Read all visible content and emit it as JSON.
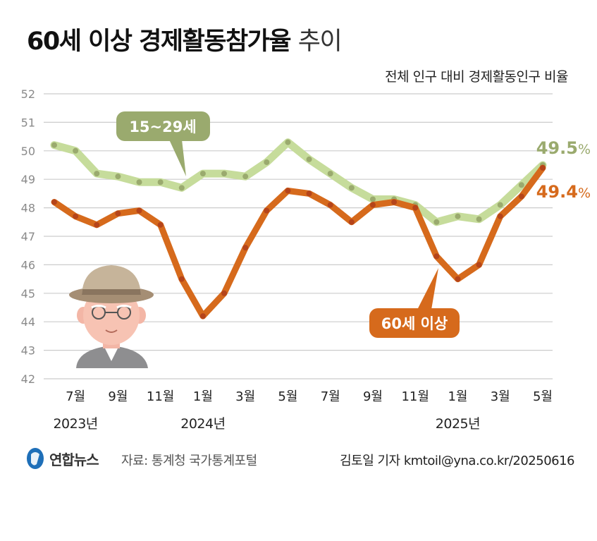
{
  "title": {
    "main": "60세 이상 경제활동참가율",
    "suffix": "추이"
  },
  "subtitle": "전체 인구 대비 경제활동인구 비율",
  "colors": {
    "youth": "#9aaa6e",
    "youth_band": "#c6dc9b",
    "senior": "#d66a1c",
    "senior_marker": "#b5441a",
    "grid": "#cccccc",
    "axis_text": "#8a8a8a"
  },
  "chart_data": {
    "type": "line",
    "x": [
      "2023-06",
      "2023-07",
      "2023-08",
      "2023-09",
      "2023-10",
      "2023-11",
      "2023-12",
      "2024-01",
      "2024-02",
      "2024-03",
      "2024-04",
      "2024-05",
      "2024-06",
      "2024-07",
      "2024-08",
      "2024-09",
      "2024-10",
      "2024-11",
      "2024-12",
      "2025-01",
      "2025-02",
      "2025-03",
      "2025-04",
      "2025-05"
    ],
    "x_tick_labels": [
      {
        "x": "2023-07",
        "label": "7월"
      },
      {
        "x": "2023-09",
        "label": "9월"
      },
      {
        "x": "2023-11",
        "label": "11월"
      },
      {
        "x": "2024-01",
        "label": "1월"
      },
      {
        "x": "2024-03",
        "label": "3월"
      },
      {
        "x": "2024-05",
        "label": "5월"
      },
      {
        "x": "2024-07",
        "label": "7월"
      },
      {
        "x": "2024-09",
        "label": "9월"
      },
      {
        "x": "2024-11",
        "label": "11월"
      },
      {
        "x": "2025-01",
        "label": "1월"
      },
      {
        "x": "2025-03",
        "label": "3월"
      },
      {
        "x": "2025-05",
        "label": "5월"
      }
    ],
    "year_labels": [
      {
        "x": "2023-07",
        "label": "2023년"
      },
      {
        "x": "2024-01",
        "label": "2024년"
      },
      {
        "x": "2025-01",
        "label": "2025년"
      }
    ],
    "y_ticks": [
      42,
      43,
      44,
      45,
      46,
      47,
      48,
      49,
      50,
      51,
      52
    ],
    "ylim": [
      42,
      52
    ],
    "grid": true,
    "series": [
      {
        "name": "15~29세",
        "values": [
          50.2,
          50.0,
          49.2,
          49.1,
          48.9,
          48.9,
          48.7,
          49.2,
          49.2,
          49.1,
          49.6,
          50.3,
          49.7,
          49.2,
          48.7,
          48.3,
          48.3,
          48.1,
          47.5,
          47.7,
          47.6,
          48.1,
          48.8,
          49.5
        ],
        "end_label": "49.5",
        "unit": "%"
      },
      {
        "name": "60세 이상",
        "values": [
          48.2,
          47.7,
          47.4,
          47.8,
          47.9,
          47.4,
          45.5,
          44.2,
          45.0,
          46.6,
          47.9,
          48.6,
          48.5,
          48.1,
          47.5,
          48.1,
          48.2,
          48.0,
          46.3,
          45.5,
          46.0,
          47.7,
          48.4,
          49.4
        ],
        "end_label": "49.4",
        "unit": "%"
      }
    ]
  },
  "footer": {
    "logo_text": "연합뉴스",
    "source": "자료: 통계청 국가통계포털",
    "credit": "김토일 기자 kmtoil@yna.co.kr/20250616"
  }
}
